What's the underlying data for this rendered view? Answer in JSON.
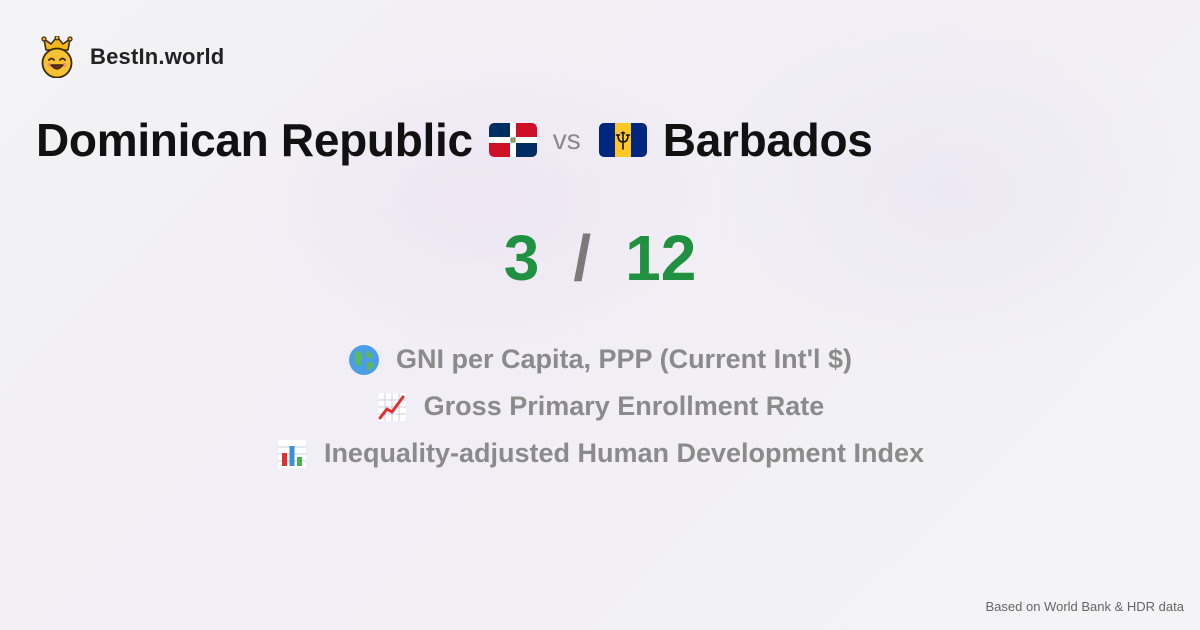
{
  "brand": {
    "name": "BestIn.world",
    "logo_icon": "crown-smiley-icon"
  },
  "comparison": {
    "country_a": "Dominican Republic",
    "country_a_flag": "dominican-republic-flag-icon",
    "vs_label": "vs",
    "country_b": "Barbados",
    "country_b_flag": "barbados-flag-icon"
  },
  "score": {
    "a": "3",
    "separator": "/",
    "b": "12",
    "color": "#1f9140"
  },
  "metrics": [
    {
      "icon": "globe-icon",
      "label": "GNI per Capita, PPP (Current Int'l $)"
    },
    {
      "icon": "chart-increasing-icon",
      "label": "Gross Primary Enrollment Rate"
    },
    {
      "icon": "bar-chart-icon",
      "label": "Inequality-adjusted Human Development Index"
    }
  ],
  "footer": {
    "source": "Based on World Bank & HDR data"
  }
}
